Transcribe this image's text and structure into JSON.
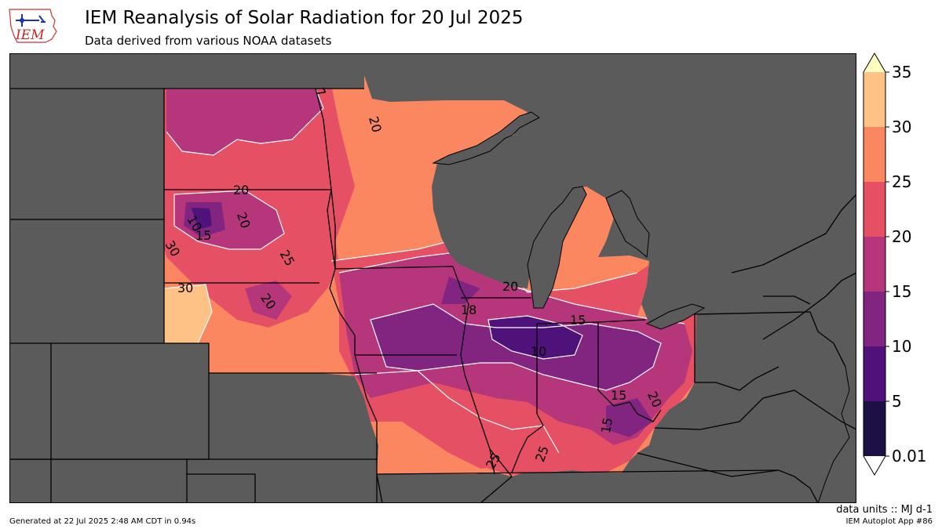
{
  "logo": {
    "text": "IEM"
  },
  "header": {
    "title": "IEM Reanalysis of Solar Radiation for 20 Jul 2025",
    "subtitle": "Data derived from various NOAA datasets"
  },
  "colors": {
    "background": "#5b5b5b",
    "border": "#000000",
    "contour_line": "#ffffff",
    "bins": [
      "#1c1044",
      "#4f127b",
      "#812581",
      "#b5367a",
      "#e55064",
      "#fb8761",
      "#fec287",
      "#fcfdbf"
    ]
  },
  "legend": {
    "ticks": [
      "35",
      "30",
      "25",
      "20",
      "15",
      "10",
      "5",
      "0.01"
    ]
  },
  "contour_labels": [
    "20",
    "20",
    "20",
    "10",
    "15",
    "30",
    "25",
    "30",
    "20",
    "20",
    "18",
    "15",
    "10",
    "15",
    "20",
    "15",
    "25",
    "25",
    "7"
  ],
  "footer": {
    "units": "data units :: MJ d-1",
    "generated": "Generated at 22 Jul 2025 2:48 AM CDT in 0.94s",
    "app": "IEM Autoplot App #86"
  }
}
